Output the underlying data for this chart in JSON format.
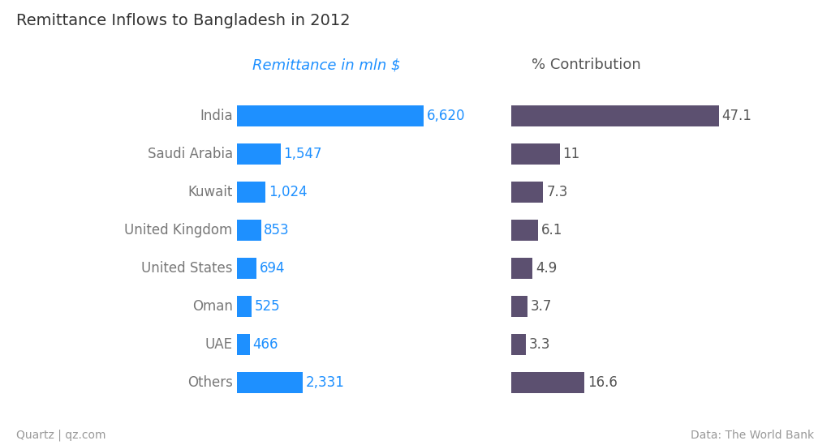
{
  "title": "Remittance Inflows to Bangladesh in 2012",
  "left_header": "Remittance in mln $",
  "right_header": "% Contribution",
  "categories": [
    "India",
    "Saudi Arabia",
    "Kuwait",
    "United Kingdom",
    "United States",
    "Oman",
    "UAE",
    "Others"
  ],
  "remittance": [
    6620,
    1547,
    1024,
    853,
    694,
    525,
    466,
    2331
  ],
  "remittance_labels": [
    "6,620",
    "1,547",
    "1,024",
    "853",
    "694",
    "525",
    "466",
    "2,331"
  ],
  "contribution": [
    47.1,
    11.0,
    7.3,
    6.1,
    4.9,
    3.7,
    3.3,
    16.6
  ],
  "contribution_labels": [
    "47.1",
    "11",
    "7.3",
    "6.1",
    "4.9",
    "3.7",
    "3.3",
    "16.6"
  ],
  "bar_color_left": "#1e90ff",
  "bar_color_right": "#5c5070",
  "background_color": "#ffffff",
  "title_color": "#333333",
  "left_header_color": "#1e90ff",
  "right_header_color": "#555555",
  "category_label_color": "#777777",
  "value_label_color_left": "#1e90ff",
  "value_label_color_right": "#555555",
  "label_fontsize": 12,
  "cat_fontsize": 12,
  "header_fontsize": 13,
  "title_fontsize": 14,
  "footer_fontsize": 10,
  "footer_left": "Quartz | qz.com",
  "footer_right": "Data: The World Bank"
}
